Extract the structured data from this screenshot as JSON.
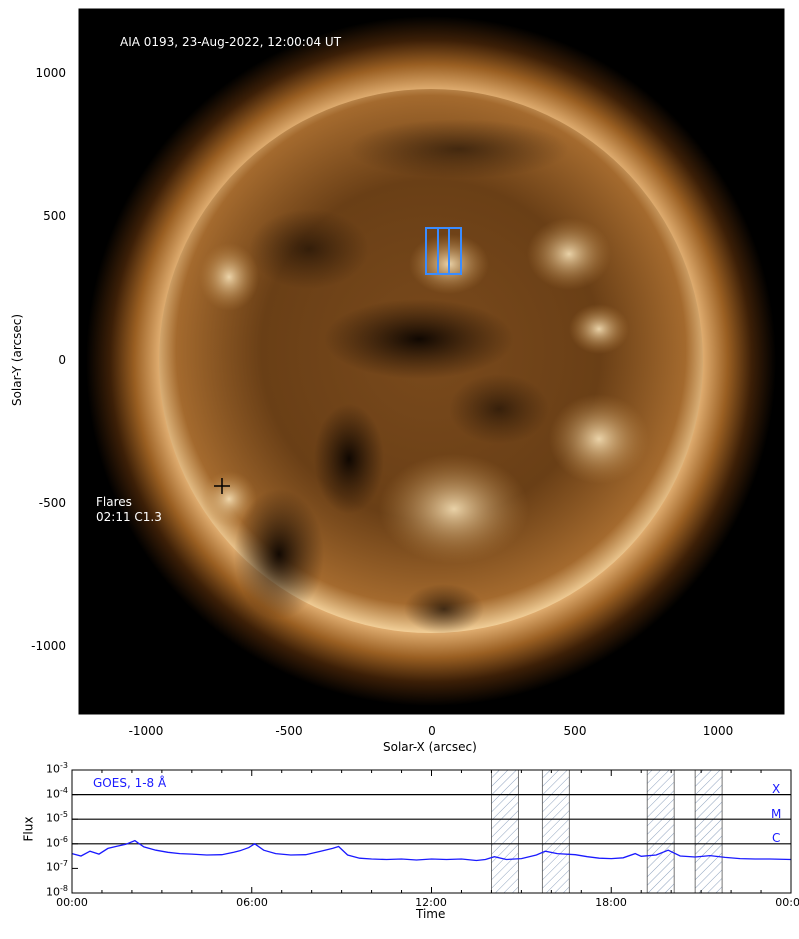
{
  "image_caption": "AIA 0193, 23-Aug-2022, 12:00:04 UT",
  "flares": {
    "title": "Flares",
    "entry": "02:11 C1.3"
  },
  "solar_x_axis": {
    "label": "Solar-X (arcsec)",
    "ticks": [
      "-1000",
      "-500",
      "0",
      "500",
      "1000"
    ]
  },
  "solar_y_axis": {
    "label": "Solar-Y (arcsec)",
    "ticks": [
      "1000",
      "500",
      "0",
      "-500",
      "-1000"
    ]
  },
  "goes": {
    "legend": "GOES, 1-8 Å",
    "y_label": "Flux",
    "x_label": "Time",
    "y_ticks": [
      {
        "base": "10",
        "exp": "-3"
      },
      {
        "base": "10",
        "exp": "-4"
      },
      {
        "base": "10",
        "exp": "-5"
      },
      {
        "base": "10",
        "exp": "-6"
      },
      {
        "base": "10",
        "exp": "-7"
      },
      {
        "base": "10",
        "exp": "-8"
      }
    ],
    "x_ticks": [
      "00:00",
      "06:00",
      "12:00",
      "18:00",
      "00:00"
    ],
    "class_labels": [
      "X",
      "M",
      "C"
    ],
    "series_color": "#1a1aff"
  },
  "chart_data": {
    "type": "line",
    "title": "GOES, 1-8 Å",
    "xlabel": "Time",
    "ylabel": "Flux",
    "y_scale": "log",
    "ylim": [
      1e-08,
      0.001
    ],
    "xlim_hours": [
      0,
      24
    ],
    "threshold_lines": [
      {
        "label": "X",
        "value": 0.0001
      },
      {
        "label": "M",
        "value": 1e-05
      },
      {
        "label": "C",
        "value": 1e-06
      }
    ],
    "hatched_intervals_hours": [
      [
        14.0,
        14.9
      ],
      [
        15.7,
        16.6
      ],
      [
        19.2,
        20.1
      ],
      [
        20.8,
        21.7
      ]
    ],
    "series": [
      {
        "x_hours": [
          0,
          0.3,
          0.6,
          0.9,
          1.2,
          1.5,
          1.8,
          2.1,
          2.2,
          2.4,
          2.8,
          3.2,
          3.6,
          4.0,
          4.5,
          5.0,
          5.4,
          5.6,
          5.9,
          6.1,
          6.4,
          6.8,
          7.3,
          7.8,
          8.3,
          8.7,
          8.9,
          9.2,
          9.6,
          10.0,
          10.5,
          11.0,
          11.5,
          12.0,
          12.5,
          13.0,
          13.5,
          13.8,
          14.1,
          14.5,
          15.0,
          15.5,
          15.8,
          16.2,
          16.8,
          17.2,
          17.6,
          18.0,
          18.4,
          18.8,
          19.0,
          19.5,
          19.9,
          20.3,
          20.8,
          21.3,
          21.8,
          22.3,
          22.8,
          23.3,
          24.0
        ],
        "y": [
          4e-07,
          3.2e-07,
          5e-07,
          3.8e-07,
          6.5e-07,
          8e-07,
          9.5e-07,
          1.35e-06,
          1.1e-06,
          7.5e-07,
          5.5e-07,
          4.5e-07,
          4e-07,
          3.8e-07,
          3.5e-07,
          3.6e-07,
          4.5e-07,
          5.2e-07,
          7e-07,
          1e-06,
          5.5e-07,
          4e-07,
          3.5e-07,
          3.6e-07,
          5e-07,
          6.5e-07,
          7.8e-07,
          3.5e-07,
          2.6e-07,
          2.4e-07,
          2.3e-07,
          2.4e-07,
          2.2e-07,
          2.4e-07,
          2.3e-07,
          2.4e-07,
          2.1e-07,
          2.3e-07,
          3e-07,
          2.3e-07,
          2.5e-07,
          3.5e-07,
          5e-07,
          4e-07,
          3.6e-07,
          3e-07,
          2.6e-07,
          2.5e-07,
          2.7e-07,
          4e-07,
          3.1e-07,
          3.5e-07,
          5.5e-07,
          3.2e-07,
          2.9e-07,
          3.3e-07,
          2.8e-07,
          2.5e-07,
          2.4e-07,
          2.4e-07,
          2.3e-07
        ],
        "color": "#1a1aff"
      }
    ]
  }
}
